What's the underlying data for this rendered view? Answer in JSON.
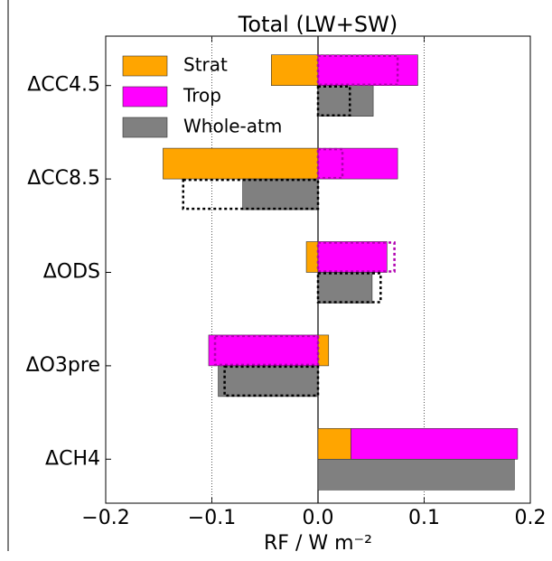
{
  "chart_data": {
    "type": "hbar",
    "title": "Total (LW+SW)",
    "xlabel": "RF / W m⁻²",
    "categories": [
      "ΔCC4.5",
      "ΔCC8.5",
      "ΔODS",
      "ΔO3pre",
      "ΔCH4"
    ],
    "series": [
      {
        "name": "Strat",
        "color": "#ffa500",
        "half": "top",
        "values": [
          -0.044,
          -0.146,
          -0.011,
          0.01,
          0.031
        ]
      },
      {
        "name": "Trop",
        "color": "#ff00ff",
        "half": "top",
        "values": [
          0.094,
          0.075,
          0.065,
          -0.103,
          0.157
        ],
        "dotted_color": "#b000b0",
        "dotted_values": [
          0.075,
          0.023,
          0.072,
          -0.097,
          null
        ]
      },
      {
        "name": "Whole-atm",
        "color": "#808080",
        "half": "bottom",
        "values": [
          0.052,
          -0.071,
          0.051,
          -0.094,
          0.185
        ],
        "dotted_color": "#000000",
        "dotted_values": [
          0.03,
          -0.127,
          0.059,
          -0.088,
          null
        ]
      }
    ],
    "xlim": [
      -0.2,
      0.2
    ],
    "xticks": [
      {
        "value": -0.2,
        "label": "−0.2"
      },
      {
        "value": -0.1,
        "label": "−0.1"
      },
      {
        "value": 0.0,
        "label": "0.0"
      },
      0.1,
      0.2
    ],
    "grid": true,
    "legend": "upper-left"
  }
}
